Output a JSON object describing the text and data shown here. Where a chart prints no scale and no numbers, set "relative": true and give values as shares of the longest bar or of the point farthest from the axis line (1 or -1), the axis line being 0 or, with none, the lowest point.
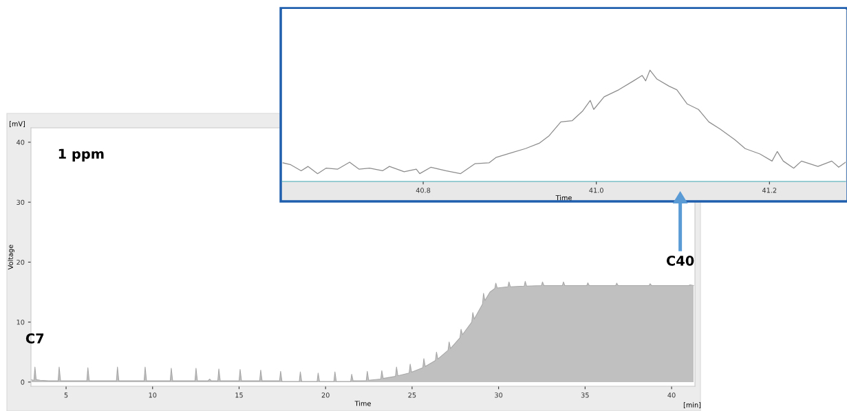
{
  "chart_data": [
    {
      "type": "area",
      "xlabel": "Time",
      "ylabel": "Voltage",
      "color": "#c0c0c0",
      "grid": false,
      "xlim": [
        2.97,
        41.35
      ],
      "ylim": [
        -0.7,
        42.4
      ],
      "xticks": [
        5,
        10,
        15,
        20,
        25,
        30,
        35,
        40
      ],
      "yticks": [
        0,
        10,
        20,
        30,
        40
      ],
      "annotations": [
        "1 ppm",
        "[mV]",
        "[min]",
        {
          "text": "C7",
          "x": 3.2,
          "y": 2.5
        },
        {
          "text": "C40",
          "x": 40.5,
          "y": 16.1
        }
      ],
      "x": [
        3.0,
        3.1,
        3.14,
        3.2,
        3.27,
        3.5,
        4.0,
        4.54,
        4.6,
        4.68,
        6.2,
        6.26,
        6.34,
        7.91,
        7.97,
        8.05,
        9.51,
        9.57,
        9.65,
        11.02,
        11.08,
        11.16,
        12.45,
        12.51,
        12.59,
        13.2,
        13.3,
        13.4,
        13.77,
        13.83,
        13.91,
        15.0,
        15.06,
        15.14,
        16.19,
        16.25,
        16.33,
        17.34,
        17.4,
        17.48,
        18.48,
        18.54,
        18.62,
        19.51,
        19.57,
        19.65,
        20.48,
        20.54,
        20.62,
        21.45,
        21.51,
        21.59,
        22.35,
        22.41,
        22.49,
        23.19,
        23.25,
        23.33,
        24.04,
        24.1,
        24.18,
        24.83,
        24.89,
        24.97,
        25.62,
        25.68,
        25.76,
        26.35,
        26.41,
        26.49,
        27.08,
        27.14,
        27.22,
        27.77,
        27.83,
        27.91,
        28.45,
        28.51,
        28.59,
        29.07,
        29.13,
        29.21,
        29.5,
        29.78,
        29.84,
        29.92,
        30.54,
        30.6,
        30.68,
        31.48,
        31.54,
        31.62,
        32.48,
        32.54,
        32.62,
        33.69,
        33.75,
        33.83,
        35.1,
        35.16,
        35.24,
        36.77,
        36.83,
        36.91,
        38.7,
        38.76,
        38.84,
        41.0,
        41.06,
        41.27
      ],
      "values": [
        0.4,
        0.3,
        0.3,
        2.5,
        0.4,
        0.3,
        0.2,
        0.2,
        2.5,
        0.2,
        0.2,
        2.4,
        0.2,
        0.2,
        2.5,
        0.2,
        0.2,
        2.5,
        0.2,
        0.2,
        2.3,
        0.2,
        0.2,
        2.3,
        0.2,
        0.2,
        0.5,
        0.2,
        0.2,
        2.2,
        0.2,
        0.2,
        2.1,
        0.2,
        0.2,
        2.0,
        0.2,
        0.2,
        1.8,
        0.1,
        0.1,
        1.7,
        0.1,
        0.1,
        1.5,
        0.1,
        0.1,
        1.7,
        0.1,
        0.1,
        1.3,
        0.2,
        0.25,
        1.8,
        0.3,
        0.5,
        1.9,
        0.6,
        0.95,
        2.5,
        1.05,
        1.5,
        3.0,
        1.65,
        2.4,
        3.9,
        2.6,
        3.6,
        5.0,
        3.85,
        5.3,
        6.7,
        5.6,
        7.4,
        8.8,
        7.9,
        10.0,
        11.6,
        10.5,
        13.0,
        14.8,
        13.6,
        15.0,
        15.6,
        16.5,
        15.7,
        15.9,
        16.7,
        15.9,
        16.0,
        16.8,
        16.0,
        16.1,
        16.7,
        16.1,
        16.1,
        16.7,
        16.1,
        16.1,
        16.55,
        16.1,
        16.1,
        16.5,
        16.1,
        16.1,
        16.4,
        16.1,
        16.1,
        16.2,
        16.1
      ]
    },
    {
      "type": "line",
      "relative": true,
      "xlabel": "Time",
      "color": "#8c8c8c",
      "grid": false,
      "xlim": [
        40.637,
        41.288
      ],
      "xticks": [
        {
          "value": 40.8,
          "label": "40.8"
        },
        {
          "value": 41.0,
          "label": "41.0"
        },
        {
          "value": 41.2,
          "label": "41.2"
        }
      ],
      "x": [
        40.638,
        40.647,
        40.659,
        40.667,
        40.678,
        40.688,
        40.701,
        40.715,
        40.726,
        40.738,
        40.753,
        40.761,
        40.778,
        40.792,
        40.796,
        40.809,
        40.826,
        40.843,
        40.86,
        40.876,
        40.884,
        40.901,
        40.918,
        40.934,
        40.945,
        40.959,
        40.972,
        40.984,
        40.993,
        40.997,
        41.009,
        41.026,
        41.043,
        41.053,
        41.057,
        41.062,
        41.07,
        41.084,
        41.093,
        41.105,
        41.118,
        41.13,
        41.143,
        41.16,
        41.172,
        41.189,
        41.203,
        41.209,
        41.216,
        41.228,
        41.237,
        41.256,
        41.272,
        41.28,
        41.288
      ],
      "values": [
        0.167,
        0.15,
        0.096,
        0.135,
        0.07,
        0.12,
        0.11,
        0.173,
        0.11,
        0.12,
        0.096,
        0.135,
        0.087,
        0.11,
        0.07,
        0.128,
        0.096,
        0.07,
        0.16,
        0.167,
        0.215,
        0.256,
        0.295,
        0.343,
        0.407,
        0.535,
        0.545,
        0.631,
        0.728,
        0.647,
        0.76,
        0.824,
        0.904,
        0.952,
        0.904,
        1.0,
        0.92,
        0.856,
        0.824,
        0.696,
        0.647,
        0.535,
        0.471,
        0.375,
        0.295,
        0.247,
        0.183,
        0.269,
        0.183,
        0.119,
        0.183,
        0.135,
        0.183,
        0.128,
        0.173
      ]
    }
  ]
}
